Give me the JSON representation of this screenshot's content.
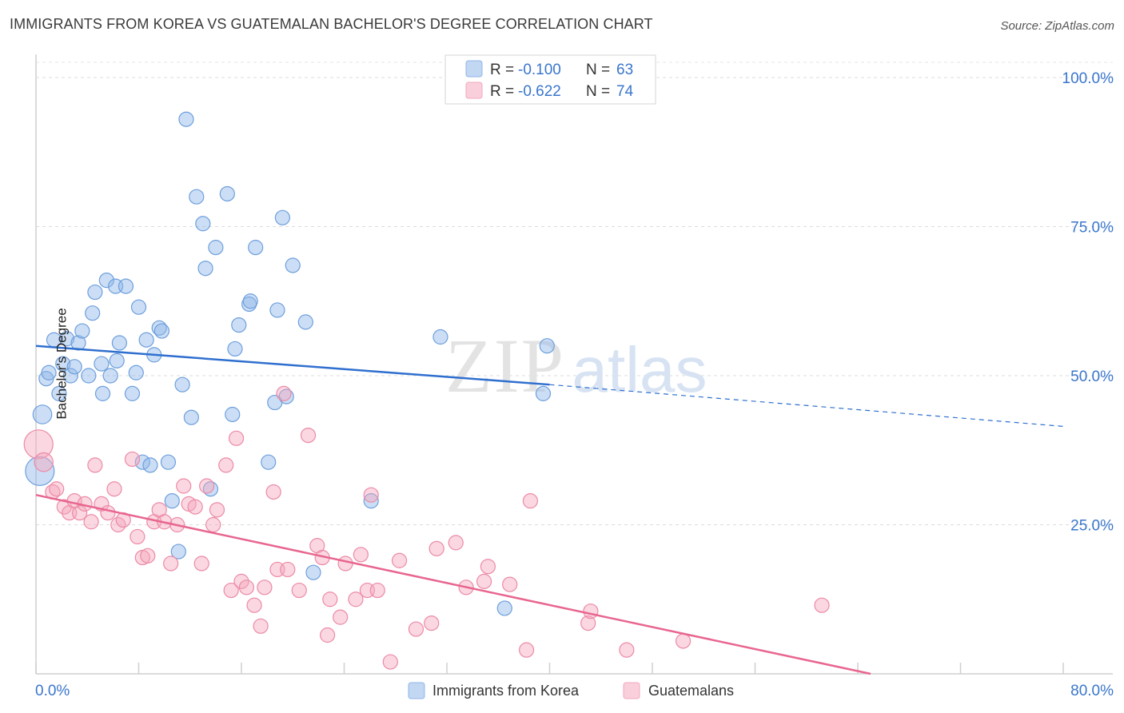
{
  "title": "IMMIGRANTS FROM KOREA VS GUATEMALAN BACHELOR'S DEGREE CORRELATION CHART",
  "source": "Source: ZipAtlas.com",
  "watermark": {
    "zip": "ZIP",
    "atlas": "atlas"
  },
  "legend_top": [
    {
      "r_label": "R =",
      "r_value": "-0.100",
      "n_label": "N =",
      "n_value": "63",
      "color": "#8fb6e8"
    },
    {
      "r_label": "R =",
      "r_value": "-0.622",
      "n_label": "N =",
      "n_value": "74",
      "color": "#f4a7bd"
    }
  ],
  "legend_bottom": [
    {
      "label": "Immigrants from Korea",
      "color": "#8fb6e8"
    },
    {
      "label": "Guatemalans",
      "color": "#f4a7bd"
    }
  ],
  "chart_data": {
    "type": "scatter",
    "title": "IMMIGRANTS FROM KOREA VS GUATEMALAN BACHELOR'S DEGREE CORRELATION CHART",
    "xlabel": "",
    "ylabel": "Bachelor's Degree",
    "xlim": [
      0,
      80
    ],
    "ylim": [
      0,
      100
    ],
    "x_tick_labels": [
      "0.0%",
      "80.0%"
    ],
    "y_tick_labels": [
      "100.0%",
      "75.0%",
      "50.0%",
      "25.0%"
    ],
    "y_ticks": [
      100,
      75,
      50,
      25
    ],
    "grid": true,
    "legend_position": "top-center",
    "series": [
      {
        "name": "Immigrants from Korea",
        "color": "#8fb6e8",
        "stroke": "#6d9fdc",
        "trend": {
          "x0": 0,
          "y0": 55.0,
          "x1": 40,
          "y1": 48.5,
          "dash_to_x": 80,
          "dash_to_y": 41.5,
          "color": "#2f6fcf"
        },
        "points": [
          [
            0.3,
            34.0,
            2.0
          ],
          [
            0.5,
            43.5,
            1.3
          ],
          [
            0.8,
            49.5,
            1
          ],
          [
            1.0,
            50.5,
            1
          ],
          [
            1.4,
            56.0,
            1
          ],
          [
            1.8,
            47.0,
            1
          ],
          [
            2.1,
            52.0,
            1
          ],
          [
            2.4,
            56.2,
            1
          ],
          [
            2.7,
            50.0,
            1
          ],
          [
            3.0,
            51.5,
            1
          ],
          [
            3.3,
            55.5,
            1
          ],
          [
            3.6,
            57.5,
            1
          ],
          [
            4.1,
            50.0,
            1
          ],
          [
            4.4,
            60.5,
            1
          ],
          [
            4.6,
            64.0,
            1
          ],
          [
            5.1,
            52.0,
            1
          ],
          [
            5.2,
            47.0,
            1
          ],
          [
            5.5,
            66.0,
            1
          ],
          [
            5.8,
            50.0,
            1
          ],
          [
            6.2,
            65.0,
            1
          ],
          [
            6.3,
            52.5,
            1
          ],
          [
            6.5,
            55.5,
            1
          ],
          [
            7.0,
            65.0,
            1
          ],
          [
            7.5,
            47.0,
            1
          ],
          [
            7.8,
            50.5,
            1
          ],
          [
            8.0,
            61.5,
            1
          ],
          [
            8.3,
            35.5,
            1
          ],
          [
            8.6,
            56.0,
            1
          ],
          [
            8.9,
            35.0,
            1
          ],
          [
            9.2,
            53.5,
            1
          ],
          [
            9.6,
            58.0,
            1
          ],
          [
            9.8,
            57.5,
            1
          ],
          [
            10.3,
            35.5,
            1
          ],
          [
            10.6,
            29.0,
            1
          ],
          [
            11.1,
            20.5,
            1
          ],
          [
            11.4,
            48.5,
            1
          ],
          [
            11.7,
            93.0,
            1
          ],
          [
            12.1,
            43.0,
            1
          ],
          [
            12.5,
            80.0,
            1
          ],
          [
            13.0,
            75.5,
            1
          ],
          [
            13.2,
            68.0,
            1
          ],
          [
            13.6,
            31.0,
            1
          ],
          [
            14.0,
            71.5,
            1
          ],
          [
            14.9,
            80.5,
            1
          ],
          [
            15.3,
            43.5,
            1
          ],
          [
            15.5,
            54.5,
            1
          ],
          [
            15.8,
            58.5,
            1
          ],
          [
            16.6,
            62.0,
            1
          ],
          [
            16.7,
            62.5,
            1
          ],
          [
            17.1,
            71.5,
            1
          ],
          [
            18.1,
            35.5,
            1
          ],
          [
            18.6,
            45.5,
            1
          ],
          [
            18.8,
            61.0,
            1
          ],
          [
            19.2,
            76.5,
            1
          ],
          [
            19.5,
            46.5,
            1
          ],
          [
            20.0,
            68.5,
            1
          ],
          [
            21.0,
            59.0,
            1
          ],
          [
            21.6,
            17.0,
            1
          ],
          [
            26.1,
            29.0,
            1
          ],
          [
            31.5,
            56.5,
            1
          ],
          [
            36.5,
            11.0,
            1
          ],
          [
            39.5,
            47.0,
            1
          ],
          [
            39.8,
            55.0,
            1
          ]
        ]
      },
      {
        "name": "Guatemalans",
        "color": "#f4a7bd",
        "stroke": "#ec8aa6",
        "trend": {
          "x0": 0,
          "y0": 30.0,
          "x1": 65,
          "y1": 0.0,
          "color": "#e8668f"
        },
        "points": [
          [
            0.2,
            38.5,
            2.0
          ],
          [
            0.6,
            35.5,
            1.3
          ],
          [
            1.3,
            30.5,
            1
          ],
          [
            1.6,
            31.0,
            1
          ],
          [
            2.2,
            28.0,
            1
          ],
          [
            2.6,
            27.0,
            1
          ],
          [
            3.0,
            29.0,
            1
          ],
          [
            3.4,
            27.0,
            1
          ],
          [
            3.8,
            28.5,
            1
          ],
          [
            4.3,
            25.5,
            1
          ],
          [
            4.6,
            35.0,
            1
          ],
          [
            5.1,
            28.5,
            1
          ],
          [
            5.6,
            27.0,
            1
          ],
          [
            6.1,
            31.0,
            1
          ],
          [
            6.4,
            25.0,
            1
          ],
          [
            6.8,
            25.8,
            1
          ],
          [
            7.5,
            36.0,
            1
          ],
          [
            7.9,
            23.0,
            1
          ],
          [
            8.3,
            19.5,
            1
          ],
          [
            8.7,
            19.8,
            1
          ],
          [
            9.2,
            25.5,
            1
          ],
          [
            9.6,
            27.5,
            1
          ],
          [
            10.0,
            25.5,
            1
          ],
          [
            10.5,
            18.5,
            1
          ],
          [
            11.0,
            25.0,
            1
          ],
          [
            11.5,
            31.5,
            1
          ],
          [
            11.9,
            28.5,
            1
          ],
          [
            12.4,
            28.0,
            1
          ],
          [
            12.9,
            18.5,
            1
          ],
          [
            13.3,
            31.5,
            1
          ],
          [
            13.8,
            25.0,
            1
          ],
          [
            14.1,
            27.5,
            1
          ],
          [
            14.8,
            35.0,
            1
          ],
          [
            15.2,
            14.0,
            1
          ],
          [
            15.6,
            39.5,
            1
          ],
          [
            16.0,
            15.5,
            1
          ],
          [
            16.4,
            14.5,
            1
          ],
          [
            17.0,
            11.5,
            1
          ],
          [
            17.5,
            8.0,
            1
          ],
          [
            17.8,
            14.5,
            1
          ],
          [
            18.5,
            30.5,
            1
          ],
          [
            18.8,
            17.5,
            1
          ],
          [
            19.3,
            47.0,
            1
          ],
          [
            19.6,
            17.5,
            1
          ],
          [
            20.5,
            14.0,
            1
          ],
          [
            21.2,
            40.0,
            1
          ],
          [
            21.9,
            21.5,
            1
          ],
          [
            22.3,
            19.5,
            1
          ],
          [
            22.7,
            6.5,
            1
          ],
          [
            22.9,
            12.5,
            1
          ],
          [
            23.7,
            9.5,
            1
          ],
          [
            24.1,
            18.5,
            1
          ],
          [
            24.9,
            12.5,
            1
          ],
          [
            25.3,
            20.0,
            1
          ],
          [
            25.8,
            14.0,
            1
          ],
          [
            26.1,
            30.0,
            1
          ],
          [
            26.6,
            14.0,
            1
          ],
          [
            27.6,
            2.0,
            1
          ],
          [
            28.3,
            19.0,
            1
          ],
          [
            29.6,
            7.5,
            1
          ],
          [
            30.8,
            8.5,
            1
          ],
          [
            31.2,
            21.0,
            1
          ],
          [
            32.7,
            22.0,
            1
          ],
          [
            33.5,
            14.5,
            1
          ],
          [
            34.9,
            15.5,
            1
          ],
          [
            35.2,
            18.0,
            1
          ],
          [
            36.9,
            15.0,
            1
          ],
          [
            38.2,
            4.0,
            1
          ],
          [
            38.5,
            29.0,
            1
          ],
          [
            43.0,
            8.5,
            1
          ],
          [
            43.2,
            10.5,
            1
          ],
          [
            46.0,
            4.0,
            1
          ],
          [
            50.4,
            5.5,
            1
          ],
          [
            61.2,
            11.5,
            1
          ]
        ]
      }
    ]
  }
}
